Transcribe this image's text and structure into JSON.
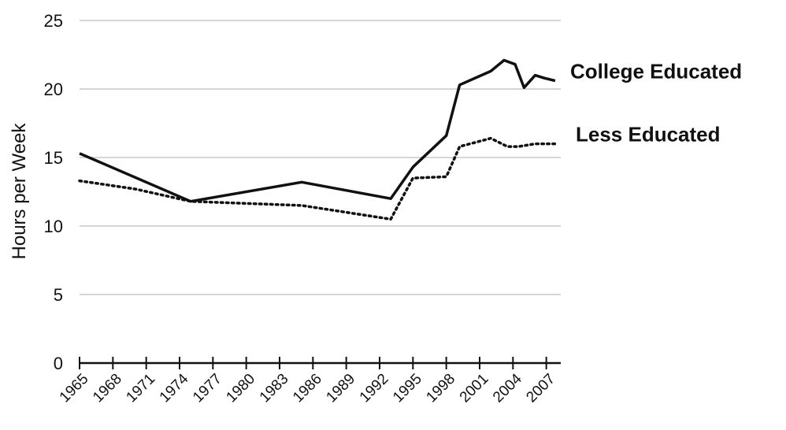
{
  "chart_data": {
    "type": "line",
    "title": "",
    "xlabel": "",
    "ylabel": "Hours per Week",
    "xlim": [
      1965,
      2008.3
    ],
    "ylim": [
      0,
      25
    ],
    "grid": "horizontal",
    "y_ticks": [
      "0",
      "5",
      "10",
      "15",
      "20",
      "25"
    ],
    "x_ticks": [
      "1965",
      "1968",
      "1971",
      "1974",
      "1977",
      "1980",
      "1983",
      "1986",
      "1989",
      "1992",
      "1995",
      "1998",
      "2001",
      "2004",
      "2007"
    ],
    "series": [
      {
        "name": "College Educated",
        "style": "solid",
        "color": "#111111",
        "points": [
          [
            1965,
            15.3
          ],
          [
            1975,
            11.8
          ],
          [
            1985,
            13.2
          ],
          [
            1993,
            12.0
          ],
          [
            1995,
            14.3
          ],
          [
            1998,
            16.6
          ],
          [
            1999.2,
            20.3
          ],
          [
            2002,
            21.3
          ],
          [
            2003.2,
            22.1
          ],
          [
            2004.2,
            21.8
          ],
          [
            2005,
            20.1
          ],
          [
            2006,
            21.0
          ],
          [
            2006.8,
            20.8
          ],
          [
            2007.8,
            20.6
          ]
        ]
      },
      {
        "name": "Less Educated",
        "style": "dotted",
        "color": "#111111",
        "points": [
          [
            1965,
            13.3
          ],
          [
            1970,
            12.7
          ],
          [
            1975,
            11.8
          ],
          [
            1985,
            11.5
          ],
          [
            1993,
            10.5
          ],
          [
            1995,
            13.5
          ],
          [
            1998,
            13.6
          ],
          [
            1999.2,
            15.8
          ],
          [
            2002,
            16.4
          ],
          [
            2003.5,
            15.8
          ],
          [
            2004.5,
            15.8
          ],
          [
            2006,
            16.0
          ],
          [
            2007.8,
            16.0
          ]
        ]
      }
    ]
  }
}
